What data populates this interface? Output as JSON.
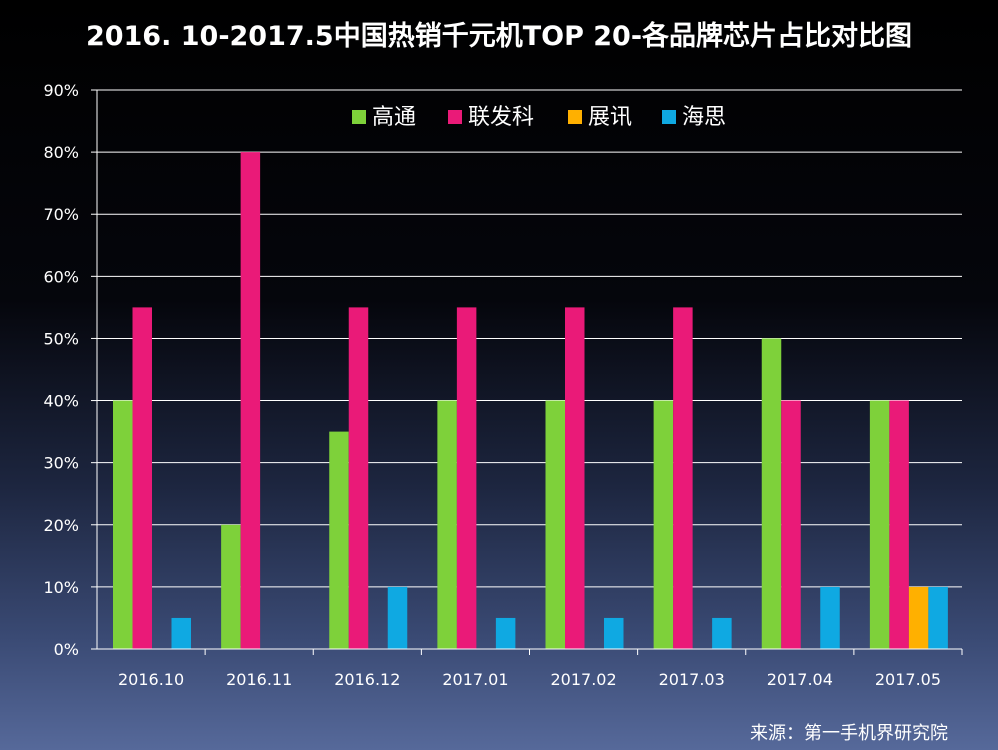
{
  "chart_data": {
    "type": "bar",
    "title": "2016. 10-2017.5中国热销千元机TOP 20-各品牌芯片占比对比图",
    "categories": [
      "2016.10",
      "2016.11",
      "2016.12",
      "2017.01",
      "2017.02",
      "2017.03",
      "2017.04",
      "2017.05"
    ],
    "series": [
      {
        "name": "高通",
        "color": "#7ed13a",
        "values": [
          40,
          20,
          35,
          40,
          40,
          40,
          50,
          40
        ]
      },
      {
        "name": "联发科",
        "color": "#ea1a78",
        "values": [
          55,
          80,
          55,
          55,
          55,
          55,
          40,
          40
        ]
      },
      {
        "name": "展讯",
        "color": "#ffb000",
        "values": [
          0,
          0,
          0,
          0,
          0,
          0,
          0,
          10
        ]
      },
      {
        "name": "海思",
        "color": "#0fa9e2",
        "values": [
          5,
          0,
          10,
          5,
          5,
          5,
          10,
          10
        ]
      }
    ],
    "yticks": [
      "0%",
      "10%",
      "20%",
      "30%",
      "40%",
      "50%",
      "60%",
      "70%",
      "80%",
      "90%"
    ],
    "ylim": [
      0,
      90
    ],
    "grid": true,
    "legend": "top-center"
  },
  "source": "来源：第一手机界研究院"
}
